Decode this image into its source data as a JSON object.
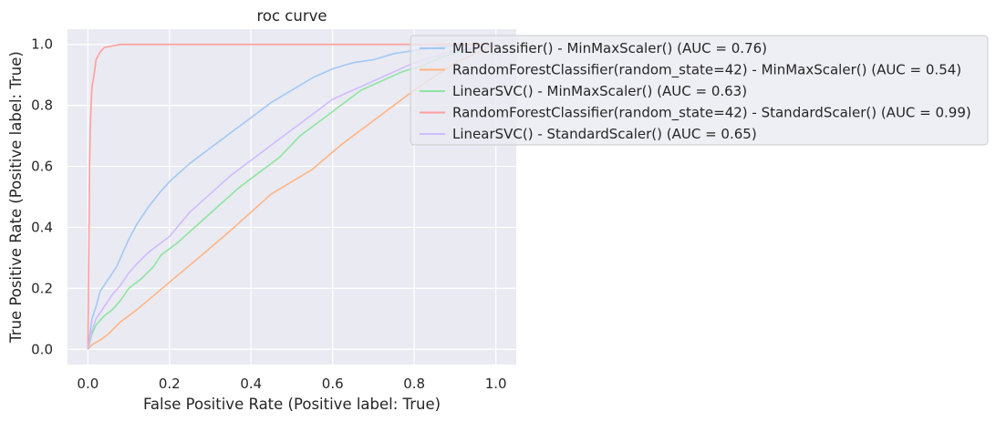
{
  "chart_data": {
    "type": "line",
    "title": "roc curve",
    "xlabel": "False Positive Rate (Positive label: True)",
    "ylabel": "True Positive Rate (Positive label: True)",
    "xlim": [
      -0.05,
      1.05
    ],
    "ylim": [
      -0.05,
      1.05
    ],
    "xticks": [
      0.0,
      0.2,
      0.4,
      0.6,
      0.8,
      1.0
    ],
    "xtick_labels": [
      "0.0",
      "0.2",
      "0.4",
      "0.6",
      "0.8",
      "1.0"
    ],
    "yticks": [
      0.0,
      0.2,
      0.4,
      0.6,
      0.8,
      1.0
    ],
    "ytick_labels": [
      "0.0",
      "0.2",
      "0.4",
      "0.6",
      "0.8",
      "1.0"
    ],
    "grid": true,
    "legend_position": "upper-right, extending outside plot",
    "background": "#eaeaf2",
    "series": [
      {
        "name": "MLPClassifier() - MinMaxScaler() (AUC = 0.76)",
        "color": "#a1c9f4",
        "x": [
          0,
          0.005,
          0.01,
          0.02,
          0.03,
          0.05,
          0.07,
          0.08,
          0.1,
          0.12,
          0.15,
          0.18,
          0.2,
          0.25,
          0.3,
          0.35,
          0.4,
          0.45,
          0.5,
          0.55,
          0.6,
          0.65,
          0.7,
          0.75,
          0.8,
          0.85,
          0.9,
          0.95,
          1.0
        ],
        "y": [
          0,
          0.05,
          0.1,
          0.14,
          0.19,
          0.23,
          0.27,
          0.3,
          0.36,
          0.41,
          0.47,
          0.52,
          0.55,
          0.61,
          0.66,
          0.71,
          0.76,
          0.81,
          0.85,
          0.89,
          0.92,
          0.94,
          0.95,
          0.97,
          0.98,
          0.99,
          0.995,
          1.0,
          1.0
        ]
      },
      {
        "name": "RandomForestClassifier(random_state=42) - MinMaxScaler() (AUC = 0.54)",
        "color": "#ffb482",
        "x": [
          0,
          0.01,
          0.03,
          0.05,
          0.08,
          0.12,
          0.2,
          0.28,
          0.35,
          0.45,
          0.55,
          0.62,
          0.7,
          0.8,
          0.9,
          1.0
        ],
        "y": [
          0,
          0.015,
          0.03,
          0.05,
          0.09,
          0.13,
          0.22,
          0.31,
          0.39,
          0.51,
          0.59,
          0.67,
          0.75,
          0.85,
          0.94,
          1.0
        ]
      },
      {
        "name": "LinearSVC() - MinMaxScaler() (AUC = 0.63)",
        "color": "#8de5a1",
        "x": [
          0,
          0.01,
          0.02,
          0.04,
          0.06,
          0.08,
          0.1,
          0.13,
          0.16,
          0.18,
          0.22,
          0.27,
          0.32,
          0.37,
          0.42,
          0.47,
          0.52,
          0.57,
          0.62,
          0.67,
          0.72,
          0.77,
          0.82,
          0.87,
          0.92,
          1.0
        ],
        "y": [
          0,
          0.05,
          0.08,
          0.11,
          0.13,
          0.16,
          0.2,
          0.23,
          0.27,
          0.31,
          0.35,
          0.41,
          0.47,
          0.53,
          0.58,
          0.63,
          0.7,
          0.75,
          0.8,
          0.85,
          0.88,
          0.91,
          0.93,
          0.96,
          0.98,
          1.0
        ]
      },
      {
        "name": "RandomForestClassifier(random_state=42) - StandardScaler() (AUC = 0.99)",
        "color": "#ff9f9b",
        "x": [
          0,
          0.002,
          0.004,
          0.006,
          0.008,
          0.01,
          0.015,
          0.02,
          0.03,
          0.04,
          0.06,
          0.08,
          0.12,
          1.0
        ],
        "y": [
          0,
          0.3,
          0.6,
          0.73,
          0.8,
          0.86,
          0.9,
          0.95,
          0.975,
          0.99,
          0.995,
          1.0,
          1.0,
          1.0
        ]
      },
      {
        "name": "LinearSVC() - StandardScaler() (AUC = 0.65)",
        "color": "#d0bbff",
        "x": [
          0,
          0.01,
          0.02,
          0.04,
          0.06,
          0.08,
          0.1,
          0.12,
          0.15,
          0.2,
          0.25,
          0.3,
          0.35,
          0.4,
          0.45,
          0.5,
          0.55,
          0.6,
          0.65,
          0.7,
          0.75,
          0.8,
          0.85,
          0.9,
          0.95,
          1.0
        ],
        "y": [
          0,
          0.06,
          0.1,
          0.14,
          0.18,
          0.21,
          0.25,
          0.28,
          0.32,
          0.37,
          0.45,
          0.51,
          0.57,
          0.62,
          0.67,
          0.72,
          0.77,
          0.82,
          0.85,
          0.88,
          0.91,
          0.94,
          0.96,
          0.98,
          0.99,
          1.0
        ]
      }
    ]
  }
}
